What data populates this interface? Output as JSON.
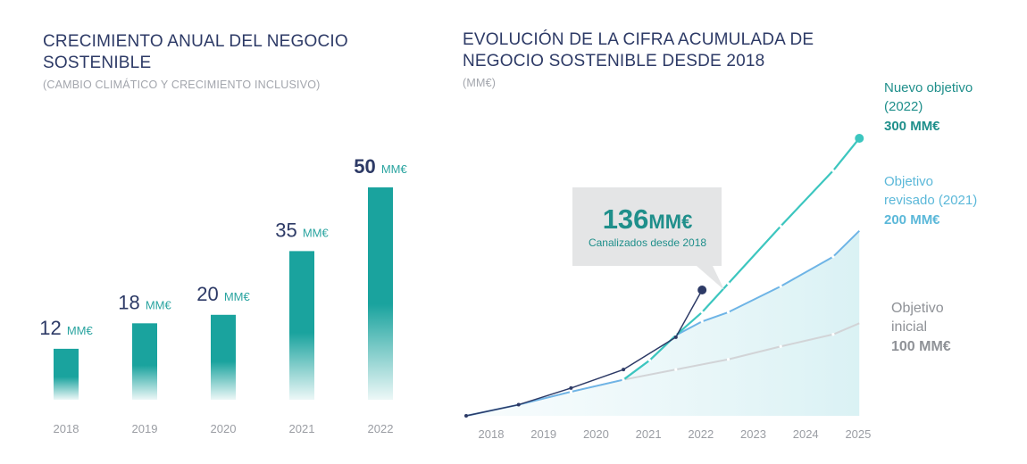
{
  "left_chart": {
    "title_line1": "CRECIMIENTO ANUAL DEL NEGOCIO",
    "title_line2": "SOSTENIBLE",
    "subtitle": "(CAMBIO CLIMÁTICO Y CRECIMIENTO INCLUSIVO)"
  },
  "right_chart": {
    "title_line1": "EVOLUCIÓN DE LA CIFRA ACUMULADA DE",
    "title_line2": "NEGOCIO SOSTENIBLE DESDE 2018",
    "subtitle": "(MM€)",
    "callout": {
      "value": "136",
      "unit": "MM€",
      "caption": "Canalizados desde 2018"
    },
    "targets": [
      {
        "lines": [
          "Nuevo objetivo",
          "(2022)"
        ],
        "value": "300 MM€",
        "color": "#1f8f8b"
      },
      {
        "lines": [
          "Objetivo",
          "revisado (2021)"
        ],
        "value": "200 MM€",
        "color": "#5bb8d9"
      },
      {
        "lines": [
          "Objetivo",
          "inicial"
        ],
        "value": "100 MM€",
        "color": "#8f9297"
      }
    ]
  },
  "colors": {
    "bar": "#1aa39e",
    "actual": "#2d3a66",
    "new_target": "#3cc6bf",
    "revised_target": "#6eb4e6",
    "initial_target": "#d2d4d7"
  },
  "chart_data": [
    {
      "type": "bar",
      "title": "CRECIMIENTO ANUAL DEL NEGOCIO SOSTENIBLE",
      "subtitle": "(CAMBIO CLIMÁTICO Y CRECIMIENTO INCLUSIVO)",
      "categories": [
        "2018",
        "2019",
        "2020",
        "2021",
        "2022"
      ],
      "values": [
        12,
        18,
        20,
        35,
        50
      ],
      "value_labels": [
        "12",
        "18",
        "20",
        "35",
        "50"
      ],
      "unit": "MM€",
      "ylim": [
        0,
        50
      ],
      "grid": false
    },
    {
      "type": "line",
      "title": "EVOLUCIÓN DE LA CIFRA ACUMULADA DE NEGOCIO SOSTENIBLE DESDE 2018",
      "subtitle": "(MM€)",
      "x": [
        "2018",
        "2019",
        "2020",
        "2021",
        "2022",
        "2023",
        "2024",
        "2025"
      ],
      "ylim": [
        0,
        300
      ],
      "grid": false,
      "series": [
        {
          "name": "",
          "x": [
            0,
            1,
            2,
            3,
            4,
            4.5
          ],
          "values": [
            0,
            12,
            30,
            50,
            85,
            136
          ]
        },
        {
          "name": "Nuevo objetivo (2022)",
          "x": [
            3,
            3.5,
            4,
            4.5,
            5,
            6,
            7,
            7.5
          ],
          "values": [
            39,
            60,
            87,
            112,
            143,
            205,
            265,
            300
          ]
        },
        {
          "name": "Objetivo revisado (2021)",
          "x": [
            0,
            1,
            2,
            3,
            3.5,
            4,
            4.5,
            5,
            6,
            7,
            7.5
          ],
          "values": [
            0,
            12,
            26,
            39,
            60,
            87,
            102,
            112,
            140,
            172,
            200
          ]
        },
        {
          "name": "Objetivo inicial",
          "x": [
            0,
            1,
            2,
            3,
            4,
            5,
            6,
            7,
            7.5
          ],
          "values": [
            0,
            12,
            26,
            39,
            50,
            61,
            75,
            88,
            100
          ]
        }
      ]
    }
  ]
}
